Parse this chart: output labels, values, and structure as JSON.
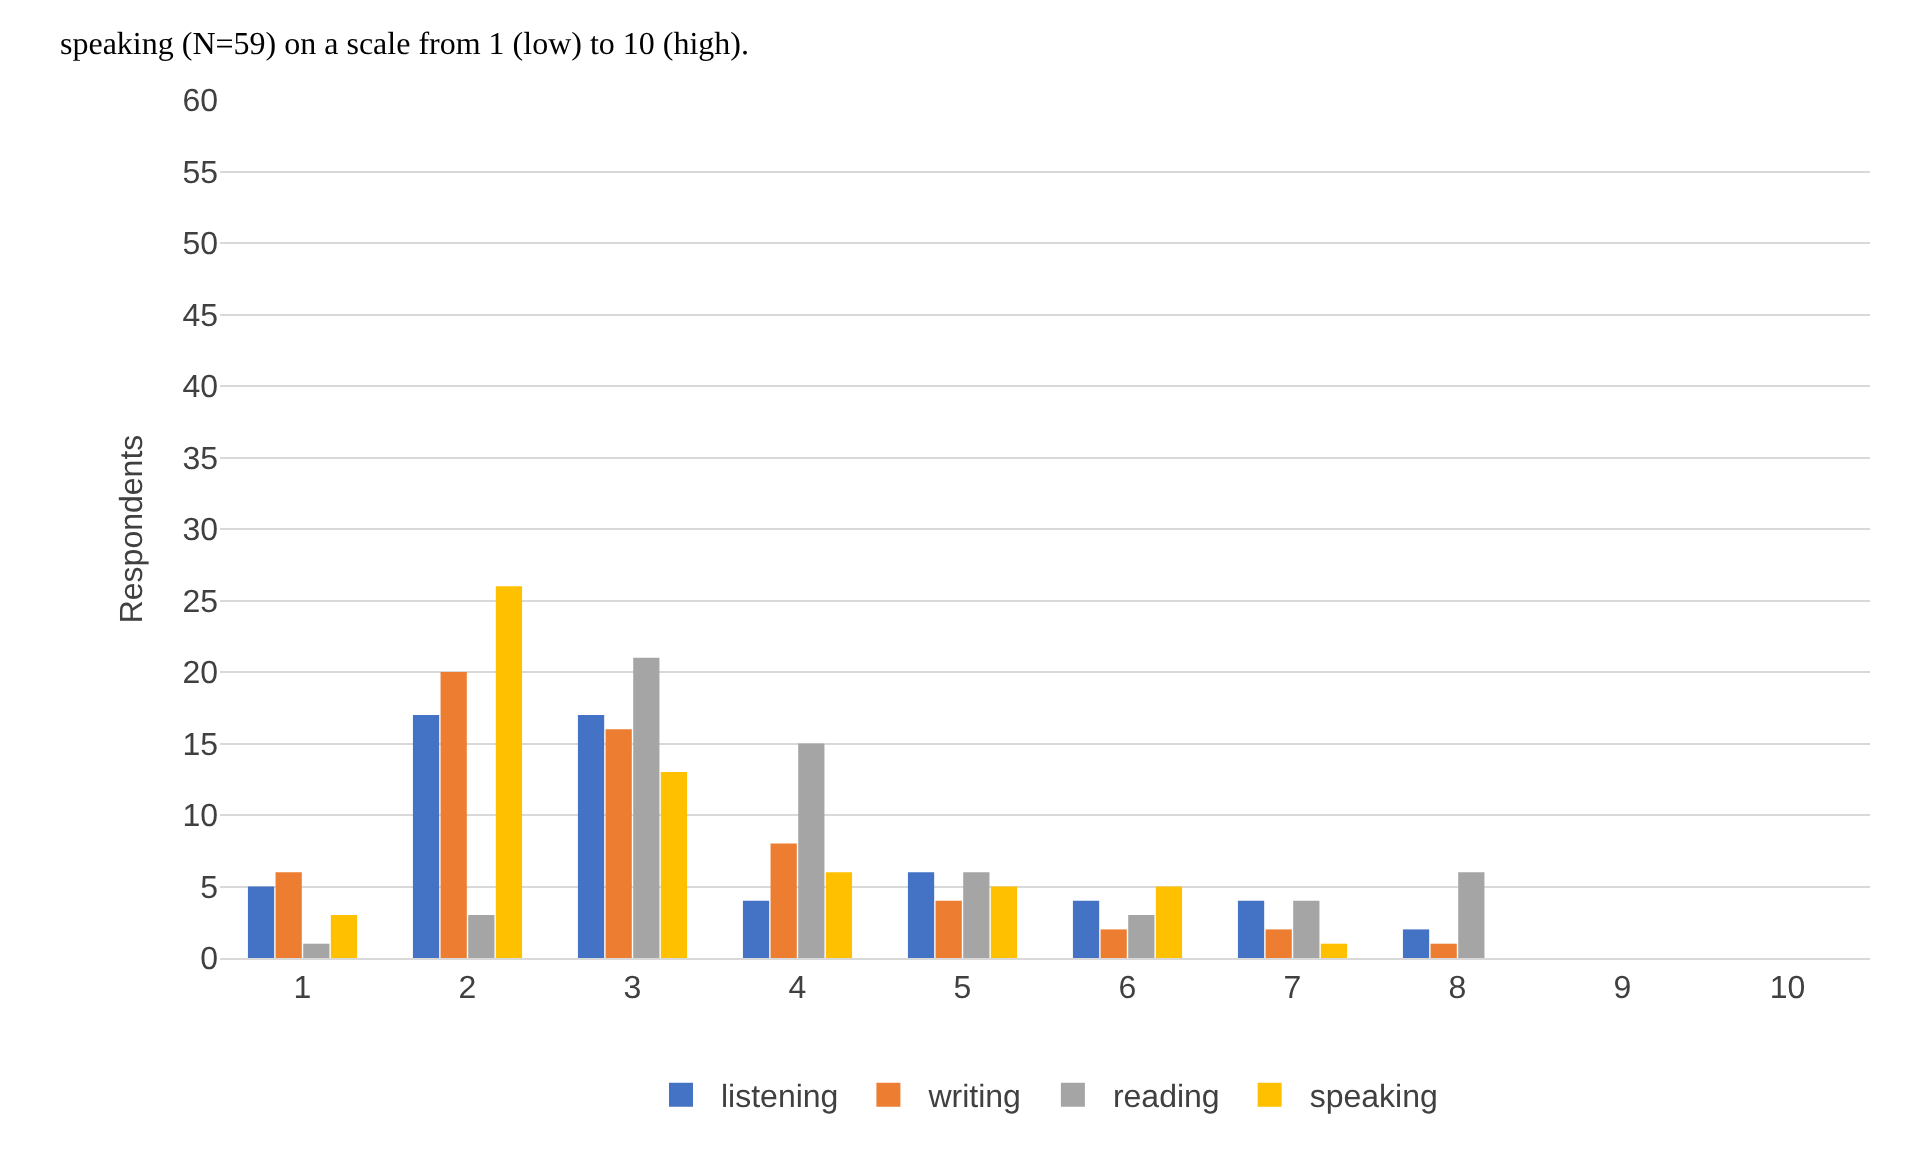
{
  "chart_data": {
    "type": "bar",
    "ylabel": "Respondents",
    "annotations": [
      "speaking (N=59) on a scale from 1 (low) to 10 (high)."
    ],
    "categories": [
      "1",
      "2",
      "3",
      "4",
      "5",
      "6",
      "7",
      "8",
      "9",
      "10"
    ],
    "series": [
      {
        "name": "listening",
        "color": "#4472c4",
        "values": [
          5,
          17,
          17,
          4,
          6,
          4,
          4,
          2,
          0,
          0
        ]
      },
      {
        "name": "writing",
        "color": "#ed7d31",
        "values": [
          6,
          20,
          16,
          8,
          4,
          2,
          2,
          1,
          0,
          0
        ]
      },
      {
        "name": "reading",
        "color": "#a5a5a5",
        "values": [
          1,
          3,
          21,
          15,
          6,
          3,
          4,
          6,
          0,
          0
        ]
      },
      {
        "name": "speaking",
        "color": "#ffc000",
        "values": [
          3,
          26,
          13,
          6,
          5,
          5,
          1,
          0,
          0,
          0
        ]
      }
    ],
    "ylim": [
      0,
      60
    ],
    "yticks": [
      0,
      5,
      10,
      15,
      20,
      25,
      30,
      35,
      40,
      45,
      50,
      55,
      60
    ],
    "grid": "y",
    "legend": "bottom"
  }
}
